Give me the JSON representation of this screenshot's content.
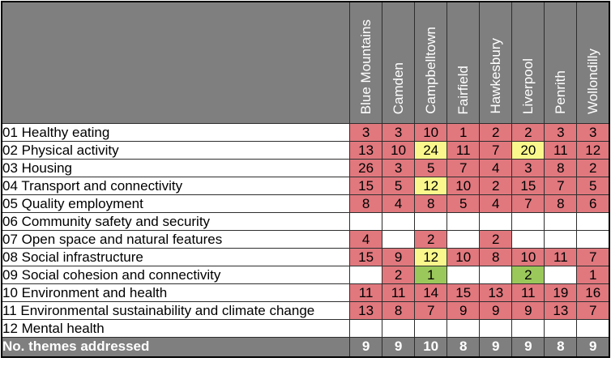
{
  "colors": {
    "red": "#E0787E",
    "yellow": "#FAF88C",
    "green": "#9BC85A",
    "gray": "#7F7F7F",
    "header_text": "#FFFFFF",
    "body_text": "#000000"
  },
  "chart_data": {
    "type": "heatmap",
    "columns": [
      "Blue Mountains",
      "Camden",
      "Campbelltown",
      "Fairfield",
      "Hawkesbury",
      "Liverpool",
      "Penrith",
      "Wollondilly"
    ],
    "row_labels": [
      "01 Healthy eating",
      "02 Physical activity",
      "03 Housing",
      "04 Transport and connectivity",
      "05 Quality employment",
      "06 Community safety and security",
      "07 Open space and natural features",
      "08 Social infrastructure",
      "09 Social cohesion and connectivity",
      "10 Environment and health",
      "11 Environmental sustainability and climate change",
      "12 Mental health"
    ],
    "values": [
      [
        3,
        3,
        10,
        1,
        2,
        2,
        3,
        3
      ],
      [
        13,
        10,
        24,
        11,
        7,
        20,
        11,
        12
      ],
      [
        26,
        3,
        5,
        7,
        4,
        3,
        8,
        2
      ],
      [
        15,
        5,
        12,
        10,
        2,
        15,
        7,
        5
      ],
      [
        8,
        4,
        8,
        5,
        4,
        7,
        8,
        6
      ],
      [
        null,
        null,
        null,
        null,
        null,
        null,
        null,
        null
      ],
      [
        4,
        null,
        2,
        null,
        2,
        null,
        null,
        null
      ],
      [
        15,
        9,
        12,
        10,
        8,
        10,
        11,
        7
      ],
      [
        null,
        2,
        1,
        null,
        null,
        2,
        null,
        1
      ],
      [
        11,
        11,
        14,
        15,
        13,
        11,
        19,
        16
      ],
      [
        13,
        8,
        7,
        9,
        9,
        9,
        13,
        7
      ],
      [
        null,
        null,
        null,
        null,
        null,
        null,
        null,
        null
      ]
    ],
    "cell_colors": [
      [
        "red",
        "red",
        "red",
        "red",
        "red",
        "red",
        "red",
        "red"
      ],
      [
        "red",
        "red",
        "yellow",
        "red",
        "red",
        "yellow",
        "red",
        "red"
      ],
      [
        "red",
        "red",
        "red",
        "red",
        "red",
        "red",
        "red",
        "red"
      ],
      [
        "red",
        "red",
        "yellow",
        "red",
        "red",
        "red",
        "red",
        "red"
      ],
      [
        "red",
        "red",
        "red",
        "red",
        "red",
        "red",
        "red",
        "red"
      ],
      [
        null,
        null,
        null,
        null,
        null,
        null,
        null,
        null
      ],
      [
        "red",
        null,
        "red",
        null,
        "red",
        null,
        null,
        null
      ],
      [
        "red",
        "red",
        "yellow",
        "red",
        "red",
        "red",
        "red",
        "red"
      ],
      [
        null,
        "red",
        "green",
        null,
        null,
        "green",
        null,
        "red"
      ],
      [
        "red",
        "red",
        "red",
        "red",
        "red",
        "red",
        "red",
        "red"
      ],
      [
        "red",
        "red",
        "red",
        "red",
        "red",
        "red",
        "red",
        "red"
      ],
      [
        null,
        null,
        null,
        null,
        null,
        null,
        null,
        null
      ]
    ],
    "footer": {
      "label": "No. themes addressed",
      "values": [
        9,
        9,
        10,
        8,
        9,
        9,
        8,
        9
      ]
    }
  }
}
